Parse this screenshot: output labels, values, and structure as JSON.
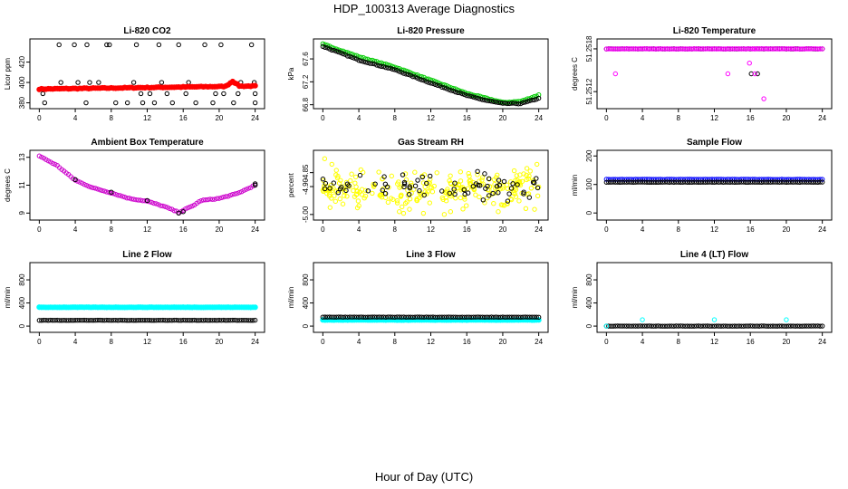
{
  "figure": {
    "title": "HDP_100313  Average Diagnostics",
    "xlabel": "Hour of Day (UTC)"
  },
  "chart_data": [
    {
      "type": "scatter",
      "title": "Li-820 CO2",
      "ylabel": "Licor ppm",
      "xlim": [
        0,
        24
      ],
      "ylim": [
        377,
        440
      ],
      "xticks": [
        "0",
        "4",
        "8",
        "12",
        "16",
        "20",
        "24"
      ],
      "yticks": [
        {
          "value": 380,
          "label": "380"
        },
        {
          "value": 400,
          "label": "400"
        },
        {
          "value": 420,
          "label": "420"
        }
      ],
      "series": [
        {
          "name": "co2_scatter",
          "color": "#000000",
          "style": "open",
          "points": [
            [
              0.4,
              389
            ],
            [
              0.6,
              380
            ],
            [
              2.2,
              437
            ],
            [
              2.4,
              400
            ],
            [
              3.9,
              437
            ],
            [
              4.3,
              400
            ],
            [
              5.2,
              380
            ],
            [
              5.3,
              437
            ],
            [
              5.6,
              400
            ],
            [
              6.6,
              400
            ],
            [
              7.5,
              437
            ],
            [
              7.8,
              437
            ],
            [
              8.5,
              380
            ],
            [
              9.8,
              380
            ],
            [
              10.5,
              400
            ],
            [
              10.8,
              437
            ],
            [
              11.3,
              389
            ],
            [
              11.5,
              380
            ],
            [
              12.3,
              389
            ],
            [
              12.8,
              380
            ],
            [
              13.3,
              437
            ],
            [
              13.6,
              400
            ],
            [
              14.2,
              389
            ],
            [
              14.8,
              380
            ],
            [
              15.5,
              437
            ],
            [
              16.3,
              389
            ],
            [
              16.6,
              400
            ],
            [
              17.4,
              380
            ],
            [
              18.4,
              437
            ],
            [
              19.3,
              380
            ],
            [
              19.6,
              389
            ],
            [
              20.2,
              437
            ],
            [
              21.6,
              380
            ],
            [
              22.1,
              389
            ],
            [
              22.4,
              400
            ],
            [
              23.6,
              437
            ],
            [
              23.9,
              400
            ],
            [
              24,
              389
            ],
            [
              24,
              380
            ],
            [
              20.5,
              389
            ]
          ]
        },
        {
          "name": "co2_mean",
          "color": "#ff0000",
          "style": "filled",
          "x_start": 0,
          "x_end": 24,
          "y_start": 393.5,
          "y_end": 396.5,
          "bumps": [
            [
              21.5,
              5
            ]
          ]
        }
      ]
    },
    {
      "type": "scatter",
      "title": "Li-820 Pressure",
      "ylabel": "kPa",
      "xlim": [
        0,
        24
      ],
      "ylim": [
        66.78,
        67.9
      ],
      "xticks": [
        "0",
        "4",
        "8",
        "12",
        "16",
        "20",
        "24"
      ],
      "yticks": [
        {
          "value": 66.8,
          "label": "66.8"
        },
        {
          "value": 67.2,
          "label": "67.2"
        },
        {
          "value": 67.6,
          "label": "67.6"
        }
      ],
      "series": [
        {
          "name": "pressure_green",
          "color": "#00cc00",
          "style": "open",
          "curve": [
            [
              0,
              67.86
            ],
            [
              4,
              67.64
            ],
            [
              8,
              67.46
            ],
            [
              12,
              67.23
            ],
            [
              16,
              67.0
            ],
            [
              18,
              66.92
            ],
            [
              20,
              66.84
            ],
            [
              22,
              66.86
            ],
            [
              24,
              66.97
            ]
          ]
        },
        {
          "name": "pressure_black",
          "color": "#000000",
          "style": "open",
          "curve": [
            [
              0,
              67.82
            ],
            [
              4,
              67.58
            ],
            [
              8,
              67.41
            ],
            [
              12,
              67.18
            ],
            [
              16,
              66.96
            ],
            [
              18,
              66.88
            ],
            [
              20,
              66.82
            ],
            [
              22,
              66.82
            ],
            [
              24,
              66.91
            ]
          ]
        }
      ]
    },
    {
      "type": "scatter",
      "title": "Li-820 Temperature",
      "ylabel": "degrees C",
      "xlim": [
        0,
        24
      ],
      "ylim": [
        51.251,
        51.2519
      ],
      "xticks": [
        "0",
        "4",
        "8",
        "12",
        "16",
        "20",
        "24"
      ],
      "yticks": [
        {
          "value": 51.2512,
          "label": "51.2512"
        },
        {
          "value": 51.2518,
          "label": "51.2518"
        }
      ],
      "series": [
        {
          "name": "temp_black",
          "color": "#000000",
          "style": "open",
          "flat": 51.2518,
          "extra": [
            [
              16.1,
              51.25145
            ],
            [
              16.8,
              51.25145
            ]
          ]
        },
        {
          "name": "temp_magenta",
          "color": "#ff00ff",
          "style": "open",
          "flat": 51.2518,
          "extra": [
            [
              1,
              51.25145
            ],
            [
              13.5,
              51.25145
            ],
            [
              15.9,
              51.2516
            ],
            [
              16.5,
              51.25145
            ],
            [
              17.5,
              51.2511
            ],
            [
              16.4,
              51.2518
            ]
          ]
        }
      ]
    },
    {
      "type": "scatter",
      "title": "Ambient Box Temperature",
      "ylabel": "degrees C",
      "xlim": [
        0,
        24
      ],
      "ylim": [
        8.7,
        13.3
      ],
      "xticks": [
        "0",
        "4",
        "8",
        "12",
        "16",
        "20",
        "24"
      ],
      "yticks": [
        {
          "value": 9,
          "label": "9"
        },
        {
          "value": 11,
          "label": "11"
        },
        {
          "value": 13,
          "label": "13"
        }
      ],
      "series": [
        {
          "name": "ambient_magenta",
          "color": "#cc00cc",
          "style": "open",
          "curve": [
            [
              0,
              13.1
            ],
            [
              2,
              12.4
            ],
            [
              4,
              11.35
            ],
            [
              6,
              10.8
            ],
            [
              8,
              10.45
            ],
            [
              10,
              10.05
            ],
            [
              12,
              9.85
            ],
            [
              14,
              9.45
            ],
            [
              15.5,
              9.05
            ],
            [
              17,
              9.5
            ],
            [
              18,
              9.9
            ],
            [
              20,
              10.05
            ],
            [
              22,
              10.4
            ],
            [
              24,
              11.0
            ]
          ]
        },
        {
          "name": "ambient_black",
          "color": "#000000",
          "style": "open",
          "points": [
            [
              4,
              11.4
            ],
            [
              8,
              10.5
            ],
            [
              12,
              9.9
            ],
            [
              15.5,
              9.0
            ],
            [
              16,
              9.1
            ],
            [
              24,
              11.0
            ],
            [
              24,
              11.1
            ]
          ]
        }
      ]
    },
    {
      "type": "scatter",
      "title": "Gas Stream RH",
      "ylabel": "percent",
      "xlim": [
        0,
        24
      ],
      "ylim": [
        -5.01,
        -4.78
      ],
      "xticks": [
        "0",
        "4",
        "8",
        "12",
        "16",
        "20",
        "24"
      ],
      "yticks": [
        {
          "value": -5.0,
          "label": "-5.00"
        },
        {
          "value": -4.9,
          "label": "-4.90"
        },
        {
          "value": -4.85,
          "label": "-4.85"
        }
      ],
      "series": [
        {
          "name": "rh_yellow",
          "color": "#ffff00",
          "style": "open",
          "band": [
            -4.96,
            -4.86
          ]
        },
        {
          "name": "rh_black",
          "color": "#000000",
          "style": "open",
          "band": [
            -4.94,
            -4.87
          ]
        }
      ]
    },
    {
      "type": "scatter",
      "title": "Sample Flow",
      "ylabel": "ml/min",
      "xlim": [
        0,
        24
      ],
      "ylim": [
        -15,
        210
      ],
      "xticks": [
        "0",
        "4",
        "8",
        "12",
        "16",
        "20",
        "24"
      ],
      "yticks": [
        {
          "value": 0,
          "label": "0"
        },
        {
          "value": 100,
          "label": "100"
        },
        {
          "value": 200,
          "label": "200"
        }
      ],
      "series": [
        {
          "name": "sample_blue",
          "color": "#0000ff",
          "style": "open",
          "flat": 118
        },
        {
          "name": "sample_black",
          "color": "#000000",
          "style": "open",
          "flat": 108
        }
      ]
    },
    {
      "type": "scatter",
      "title": "Line 2 Flow",
      "ylabel": "ml/min",
      "xlim": [
        0,
        24
      ],
      "ylim": [
        -60,
        1050
      ],
      "xticks": [
        "0",
        "4",
        "8",
        "12",
        "16",
        "20",
        "24"
      ],
      "yticks": [
        {
          "value": 0,
          "label": "0"
        },
        {
          "value": 400,
          "label": "400"
        },
        {
          "value": 800,
          "label": "800"
        }
      ],
      "series": [
        {
          "name": "line2_cyan",
          "color": "#00ffff",
          "style": "filled",
          "flat": 325
        },
        {
          "name": "line2_black",
          "color": "#000000",
          "style": "open",
          "flat": 100
        }
      ]
    },
    {
      "type": "scatter",
      "title": "Line 3 Flow",
      "ylabel": "ml/min",
      "xlim": [
        0,
        24
      ],
      "ylim": [
        -60,
        1050
      ],
      "xticks": [
        "0",
        "4",
        "8",
        "12",
        "16",
        "20",
        "24"
      ],
      "yticks": [
        {
          "value": 0,
          "label": "0"
        },
        {
          "value": 400,
          "label": "400"
        },
        {
          "value": 800,
          "label": "800"
        }
      ],
      "series": [
        {
          "name": "line3_cyan",
          "color": "#00ffff",
          "style": "filled",
          "flat": 105
        },
        {
          "name": "line3_black",
          "color": "#000000",
          "style": "open",
          "flat": 155
        }
      ]
    },
    {
      "type": "scatter",
      "title": "Line 4 (LT) Flow",
      "ylabel": "ml/min",
      "xlim": [
        0,
        24
      ],
      "ylim": [
        -60,
        1050
      ],
      "xticks": [
        "0",
        "4",
        "8",
        "12",
        "16",
        "20",
        "24"
      ],
      "yticks": [
        {
          "value": 0,
          "label": "0"
        },
        {
          "value": 400,
          "label": "400"
        },
        {
          "value": 800,
          "label": "800"
        }
      ],
      "series": [
        {
          "name": "line4_black",
          "color": "#000000",
          "style": "open",
          "flat": 0
        },
        {
          "name": "line4_cyan",
          "color": "#00ffff",
          "style": "open",
          "points": [
            [
              0,
              0
            ],
            [
              4,
              110
            ],
            [
              12,
              110
            ],
            [
              20,
              110
            ]
          ]
        }
      ]
    }
  ]
}
